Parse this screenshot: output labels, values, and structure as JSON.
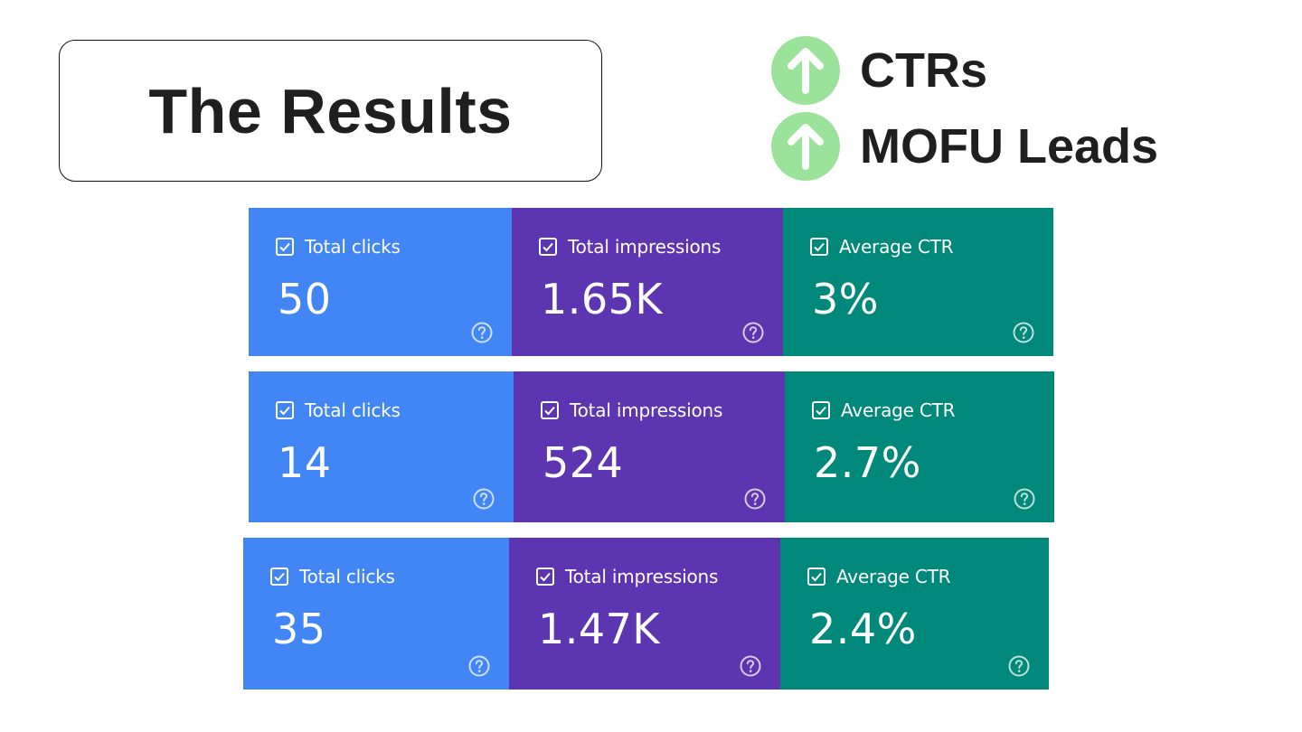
{
  "title": "The Results",
  "highlights": [
    {
      "label": "CTRs",
      "icon": "arrow-up-circle-icon"
    },
    {
      "label": "MOFU Leads",
      "icon": "arrow-up-circle-icon"
    }
  ],
  "colors": {
    "clicks": "#4285f4",
    "impressions": "#5e35b1",
    "ctr": "#00897b",
    "up_icon": "#9be29b",
    "text": "#1f1f1f"
  },
  "metric_rows": [
    {
      "clicks": {
        "label": "Total clicks",
        "value": "50"
      },
      "impressions": {
        "label": "Total impressions",
        "value": "1.65K"
      },
      "ctr": {
        "label": "Average CTR",
        "value": "3%"
      }
    },
    {
      "clicks": {
        "label": "Total clicks",
        "value": "14"
      },
      "impressions": {
        "label": "Total impressions",
        "value": "524"
      },
      "ctr": {
        "label": "Average CTR",
        "value": "2.7%"
      }
    },
    {
      "clicks": {
        "label": "Total clicks",
        "value": "35"
      },
      "impressions": {
        "label": "Total impressions",
        "value": "1.47K"
      },
      "ctr": {
        "label": "Average CTR",
        "value": "2.4%"
      }
    }
  ]
}
